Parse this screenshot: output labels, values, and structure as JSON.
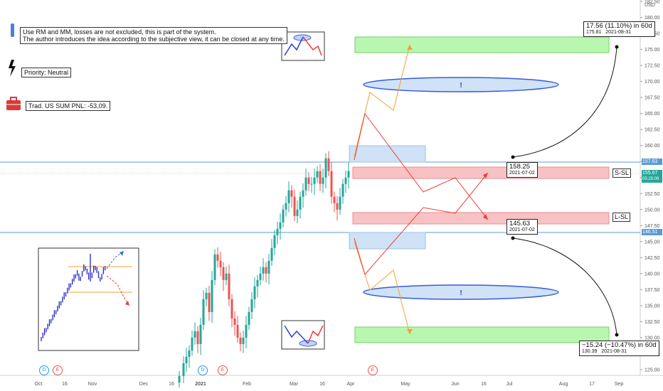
{
  "notes": {
    "disclaimer_line1": "Use RM and MM, losses are not excluded, this is part of the system.",
    "disclaimer_line2": "The author introduces the idea according to the subjective view, it can be closed at any time.",
    "priority": "Priority: Neutral",
    "pnl": "Trad. US SUM PNL: -53,09."
  },
  "icons": {
    "info": "info-bar-icon",
    "lightning": "lightning-icon",
    "briefcase": "briefcase-icon"
  },
  "price_axis": {
    "currency": "USD",
    "ticks": [
      "182.50",
      "180.00",
      "177.50",
      "175.00",
      "172.50",
      "170.00",
      "167.50",
      "165.00",
      "162.50",
      "160.00",
      "157.50",
      "155.00",
      "152.50",
      "150.00",
      "147.50",
      "145.00",
      "142.50",
      "140.00",
      "137.50",
      "135.00",
      "132.50",
      "130.00",
      "127.50",
      "125.00"
    ],
    "tag_upper": "157.63",
    "tag_current": "155.67",
    "tag_countdown": "05:25:09",
    "tag_lower": "146.51"
  },
  "time_axis": {
    "labels": [
      "Oct",
      "16",
      "Nov",
      "Dec",
      "16",
      "2021",
      "Feb",
      "Mar",
      "16",
      "Apr",
      "May",
      "Jun",
      "16",
      "Jul",
      "Aug",
      "17",
      "Sep"
    ]
  },
  "markers": {
    "upper_price": "158.25",
    "upper_date": "2021-07-02",
    "lower_price": "145.63",
    "lower_date": "2021-07-02",
    "s_sl": "S-SL",
    "l_sl": "L-SL",
    "exclaim": "!"
  },
  "projections": {
    "up_main": "17.56 (11.10%) in 60d",
    "up_price": "175.81",
    "up_date": "2021-08-31",
    "down_main": "−15.24 (−10.47%) in 60d",
    "down_price": "130.39",
    "down_date": "2021-08-31"
  },
  "events": {
    "dividend": "D",
    "earnings": "E"
  },
  "colors": {
    "bull": "#26a69a",
    "bear": "#ef5350",
    "green_zone": "#b9f6b0",
    "red_zone": "#f8c2c4",
    "blue_zone": "#cfe2f6",
    "horizontal": "#5b9bd5"
  }
}
